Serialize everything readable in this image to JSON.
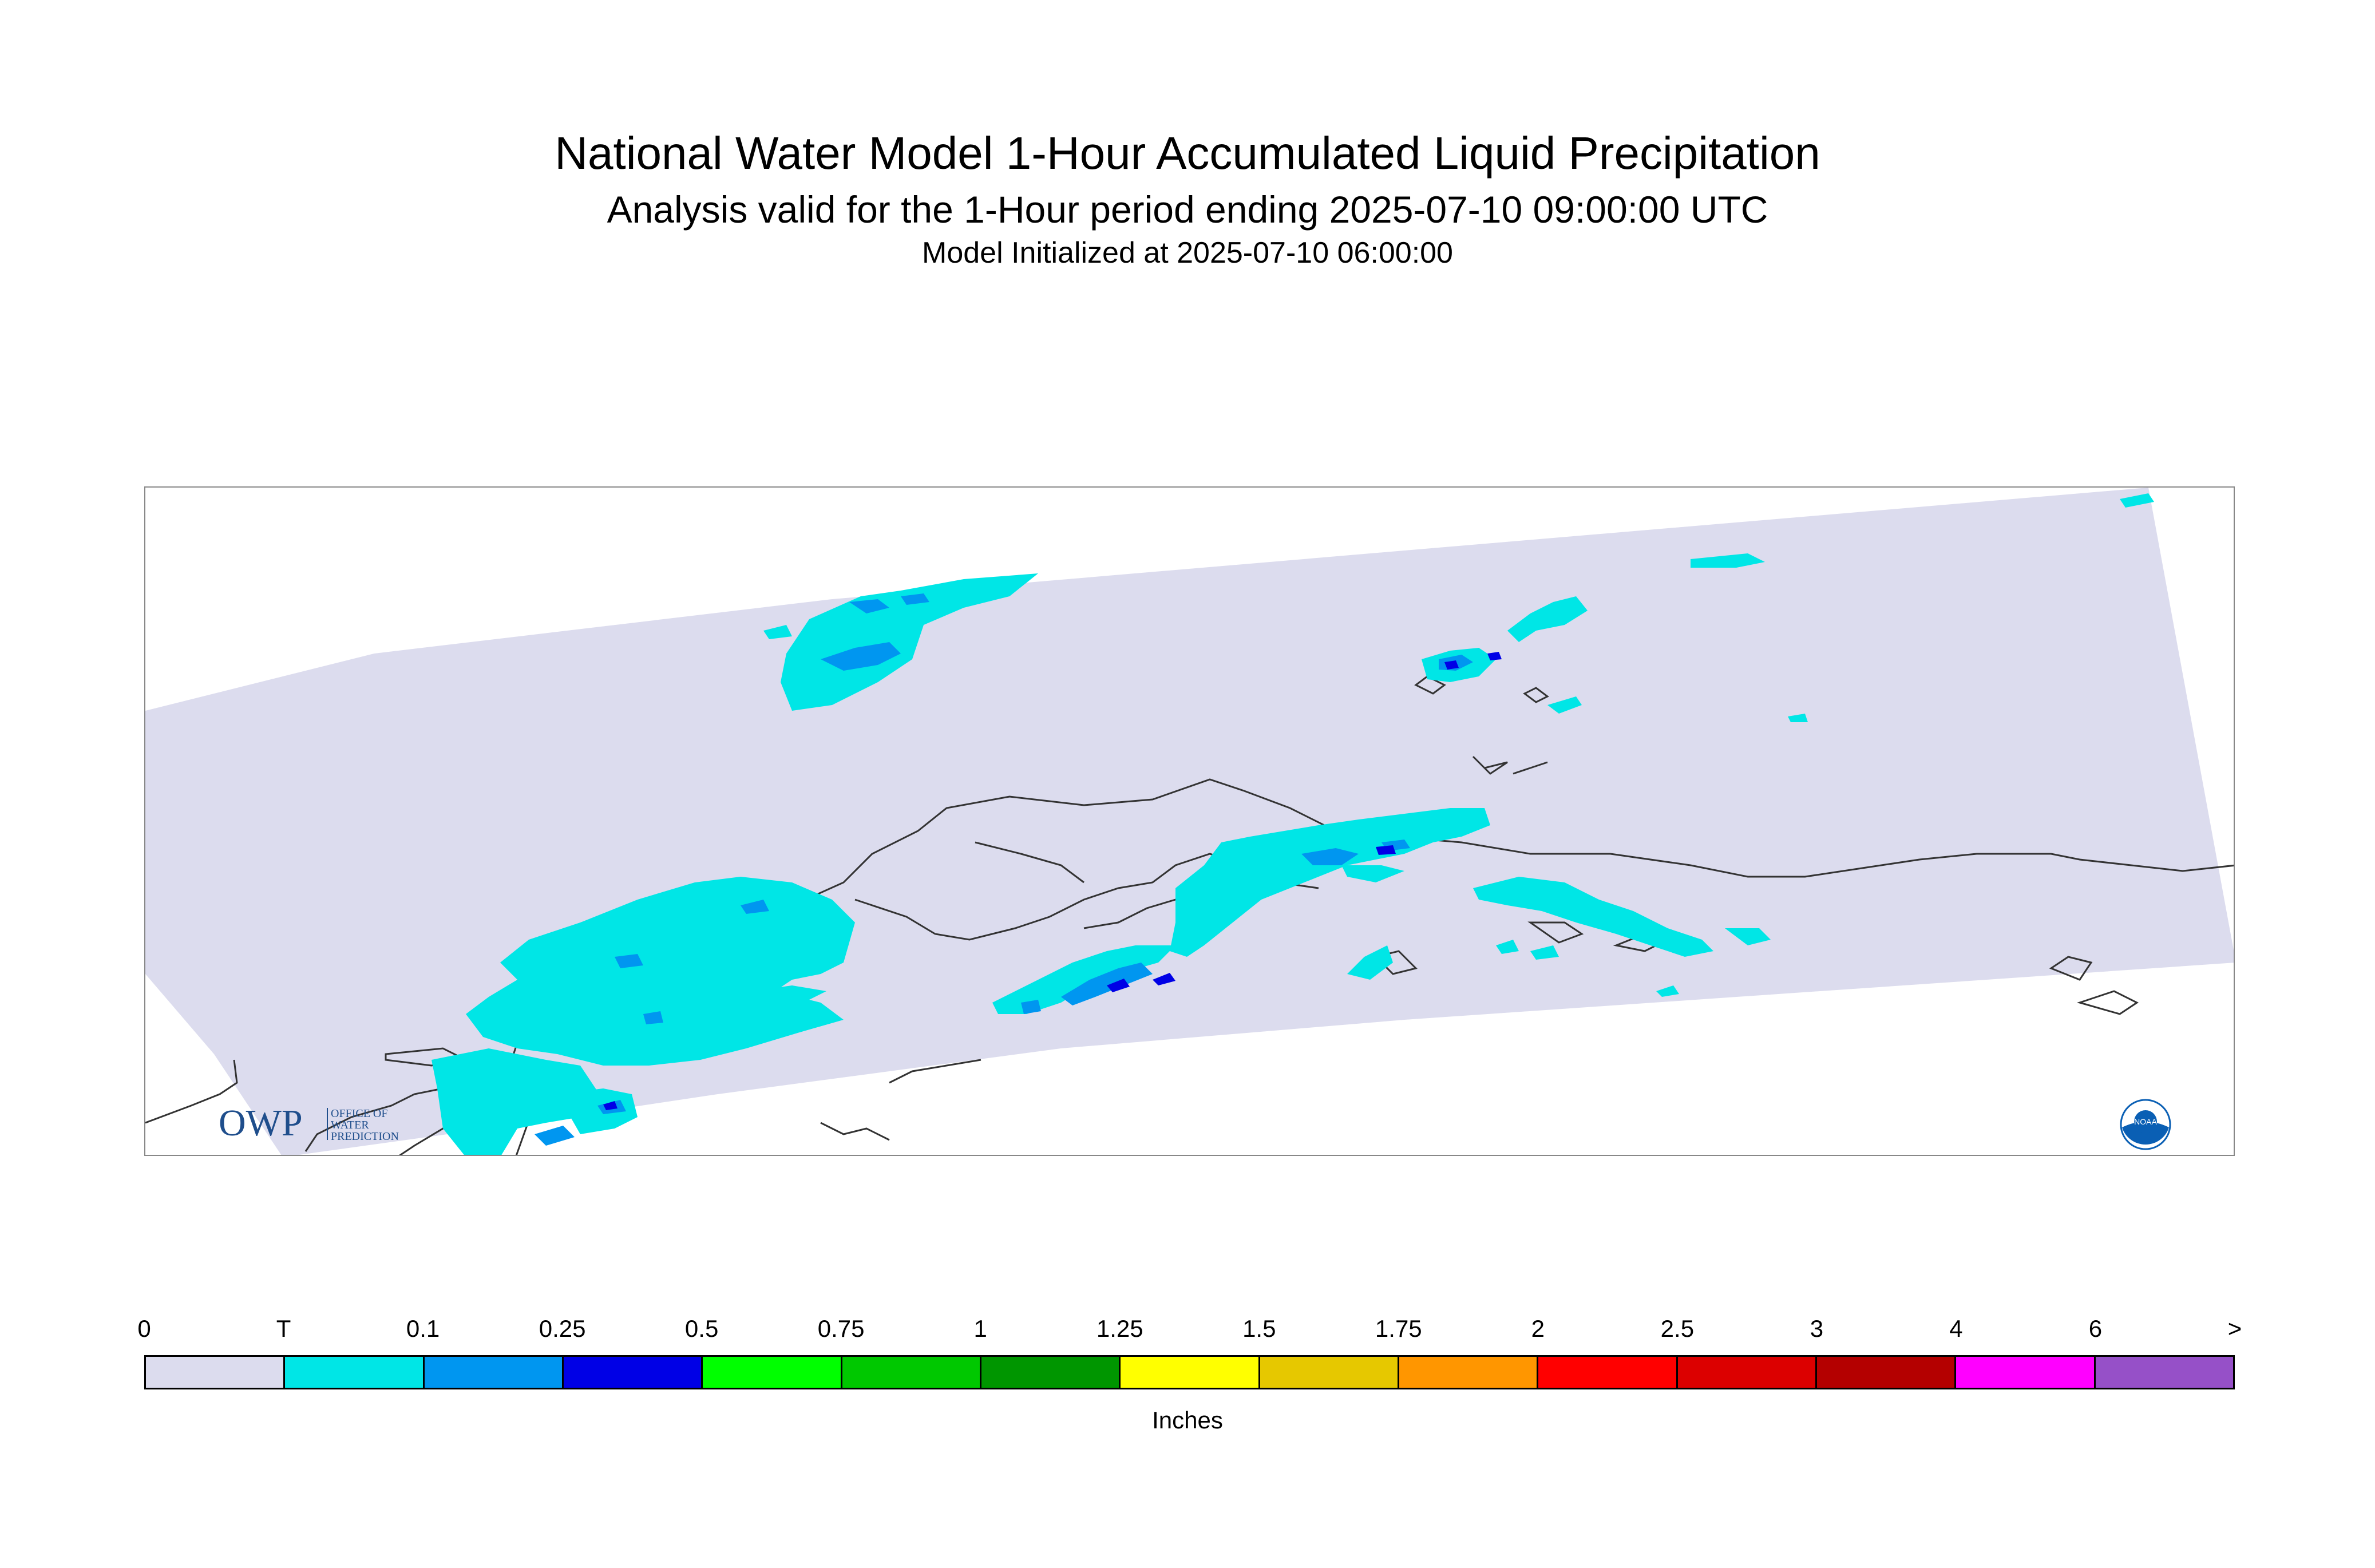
{
  "header": {
    "title": "National Water Model 1-Hour Accumulated Liquid Precipitation",
    "subtitle": "Analysis valid for the 1-Hour period ending 2025-07-10 09:00:00 UTC",
    "init": "Model Initialized at 2025-07-10 06:00:00"
  },
  "map": {
    "domain_color": "#dcdcee",
    "coastline_color": "#333333",
    "precip_colors": {
      "trace": "#00e6e6",
      "light": "#0096f0",
      "moderate": "#0000e6"
    }
  },
  "logos": {
    "owp": {
      "letters": "OWP",
      "line1": "OFFICE OF",
      "line2": "WATER",
      "line3": "PREDICTION",
      "color": "#1f4e8c"
    },
    "noaa": {
      "text": "NOAA",
      "color": "#0a5fb4"
    }
  },
  "legend": {
    "units": "Inches",
    "ticks": [
      "0",
      "T",
      "0.1",
      "0.25",
      "0.5",
      "0.75",
      "1",
      "1.25",
      "1.5",
      "1.75",
      "2",
      "2.5",
      "3",
      "4",
      "6",
      ">"
    ],
    "colors": [
      "#dcdcee",
      "#00e6e6",
      "#0096f0",
      "#0000e6",
      "#00ff00",
      "#00c800",
      "#009600",
      "#ffff00",
      "#e6c800",
      "#ff9600",
      "#ff0000",
      "#dc0000",
      "#b40000",
      "#ff00ff",
      "#9650c8"
    ]
  }
}
